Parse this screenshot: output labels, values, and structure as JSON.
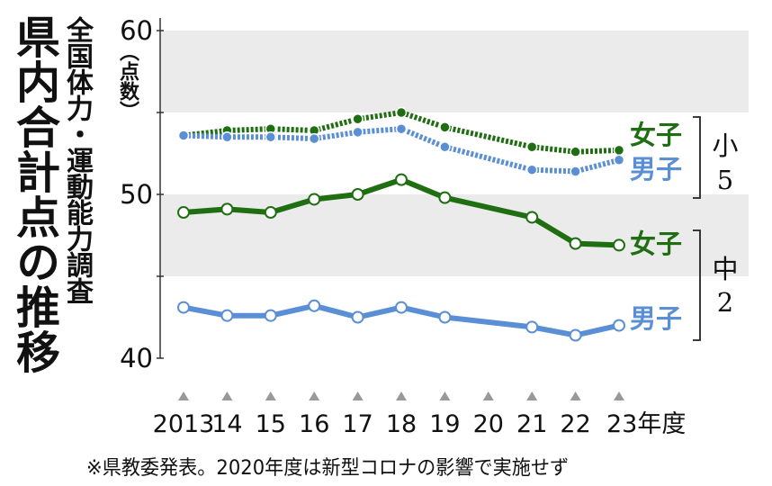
{
  "title": "県内合計点の推移",
  "subtitle": "全国体力・運動能力調査",
  "unit_label": "（点数）",
  "source_note": "※県教委発表。2020年度は新型コロナの影響で実施せず",
  "chart_data": {
    "type": "line",
    "x": [
      "2013",
      "14",
      "15",
      "16",
      "17",
      "18",
      "19",
      "20",
      "21",
      "22",
      "23年度"
    ],
    "ylim": [
      40,
      60
    ],
    "yticks": [
      40,
      50,
      60
    ],
    "grid": false,
    "groups": [
      {
        "label": "小5",
        "label_lines": [
          "小",
          "5"
        ]
      },
      {
        "label": "中2",
        "label_lines": [
          "中",
          "2"
        ]
      }
    ],
    "series": [
      {
        "name": "女子",
        "group": "小5",
        "color": "#1f6e12",
        "dashed": true,
        "marker": "filled",
        "values": [
          53.6,
          53.9,
          54.0,
          53.9,
          54.6,
          55.0,
          54.1,
          null,
          52.9,
          52.6,
          52.7
        ]
      },
      {
        "name": "男子",
        "group": "小5",
        "color": "#5a8fd6",
        "dashed": true,
        "marker": "filled",
        "values": [
          53.6,
          53.5,
          53.5,
          53.4,
          53.8,
          54.0,
          52.9,
          null,
          51.5,
          51.4,
          52.1
        ]
      },
      {
        "name": "女子",
        "group": "中2",
        "color": "#1f6e12",
        "dashed": false,
        "marker": "open",
        "values": [
          48.9,
          49.1,
          48.9,
          49.7,
          50.0,
          50.9,
          49.8,
          null,
          48.6,
          47.0,
          46.9
        ]
      },
      {
        "name": "男子",
        "group": "中2",
        "color": "#5a8fd6",
        "dashed": false,
        "marker": "open",
        "values": [
          43.1,
          42.6,
          42.6,
          43.2,
          42.5,
          43.1,
          42.5,
          null,
          41.9,
          41.4,
          42.0
        ]
      }
    ]
  }
}
